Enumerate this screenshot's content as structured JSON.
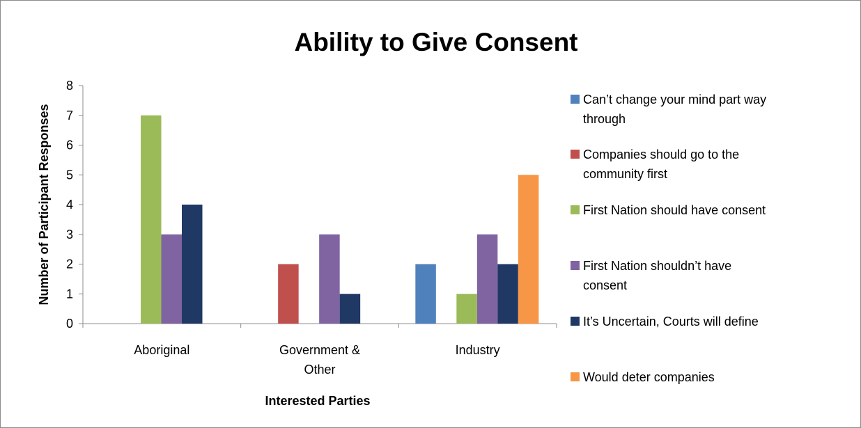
{
  "chart_data": {
    "type": "bar",
    "title": "Ability to Give Consent",
    "xlabel": "Interested Parties",
    "ylabel": "Number of Participant Responses",
    "ylim": [
      0,
      8
    ],
    "yticks": [
      "0",
      "1",
      "2",
      "3",
      "4",
      "5",
      "6",
      "7",
      "8"
    ],
    "categories": [
      [
        "Aboriginal"
      ],
      [
        "Government &",
        "Other"
      ],
      [
        "Industry"
      ]
    ],
    "series": [
      {
        "name": "Can’t change your mind part way through",
        "legend_lines": [
          "Can’t change your mind part way",
          "through"
        ],
        "color": "#4f81bd",
        "values": [
          0,
          0,
          2
        ]
      },
      {
        "name": "Companies should go to the community first",
        "legend_lines": [
          "Companies should go to the",
          "community first"
        ],
        "color": "#c0504d",
        "values": [
          0,
          2,
          0
        ]
      },
      {
        "name": "First Nation should have consent",
        "legend_lines": [
          "First Nation should have consent"
        ],
        "color": "#9bbb59",
        "values": [
          7,
          0,
          1
        ]
      },
      {
        "name": "First Nation shouldn’t have consent",
        "legend_lines": [
          "First Nation shouldn’t have",
          "consent"
        ],
        "color": "#8064a2",
        "values": [
          3,
          3,
          3
        ]
      },
      {
        "name": "It’s Uncertain, Courts will define",
        "legend_lines": [
          "It’s Uncertain, Courts will define"
        ],
        "color": "#1f3864",
        "values": [
          4,
          1,
          2
        ]
      },
      {
        "name": "Would deter companies",
        "legend_lines": [
          "Would deter companies"
        ],
        "color": "#f79646",
        "values": [
          0,
          0,
          5
        ]
      }
    ],
    "gridlines": false,
    "legend_position": "right"
  }
}
